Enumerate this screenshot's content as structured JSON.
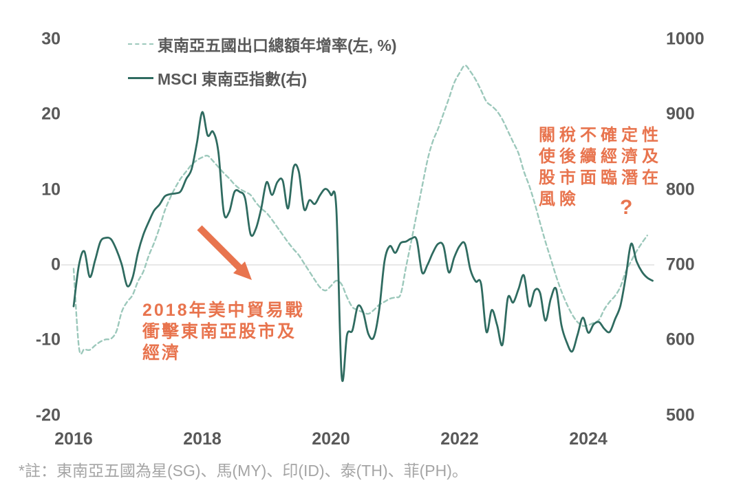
{
  "legend": {
    "items": [
      {
        "label": "東南亞五國出口總額年增率(左, %)",
        "swatch": "dashed-teal-line-icon"
      },
      {
        "label": "MSCI 東南亞指數(右)",
        "swatch": "solid-teal-line-icon"
      }
    ]
  },
  "annotations": {
    "trade_war": {
      "lines": [
        "2018年美中貿易戰",
        "衝擊東南亞股市及",
        "經濟"
      ]
    },
    "tariff_risk": {
      "lines": [
        "關稅不確定性",
        "使後續經濟及",
        "股市面臨潛在",
        "風險"
      ]
    },
    "question_mark": "?"
  },
  "footnote": "*註：東南亞五國為星(SG)、馬(MY)、印(ID)、泰(TH)、菲(PH)。",
  "colors": {
    "export_line": "#9CC8BB",
    "msci_line": "#2F6B60",
    "annotation_orange": "#E8744E",
    "axis_text": "#595959",
    "footnote_text": "#A5A5A5",
    "gridline": "#D9D9D9"
  },
  "chart_data": {
    "type": "line",
    "title": "",
    "x_axis": {
      "tick_labels": [
        "2016",
        "2018",
        "2020",
        "2022",
        "2024"
      ],
      "tick_years": [
        2016,
        2018,
        2020,
        2022,
        2024
      ],
      "range_years": [
        2016,
        2025.2
      ],
      "grid": false
    },
    "left_axis": {
      "ticks": [
        "30",
        "20",
        "10",
        "0",
        "-10",
        "-20"
      ],
      "tick_values": [
        30,
        20,
        10,
        0,
        -10,
        -20
      ],
      "range": [
        -20,
        30
      ],
      "unit": "%"
    },
    "right_axis": {
      "ticks": [
        "1000",
        "900",
        "800",
        "700",
        "600",
        "500"
      ],
      "tick_values": [
        1000,
        900,
        800,
        700,
        600,
        500
      ],
      "range": [
        500,
        1000
      ]
    },
    "gridline_left_value": 0,
    "legend_position": "top-left",
    "series": [
      {
        "name": "東南亞五國出口總額年增率(左, %)",
        "axis": "left",
        "line_style": "dashed",
        "color": "#9CC8BB",
        "start": "2016-01",
        "interval": "monthly",
        "values": [
          -0.5,
          -11.0,
          -11.2,
          -11.3,
          -10.7,
          -10.2,
          -9.9,
          -9.8,
          -8.8,
          -6.2,
          -4.9,
          -4.0,
          -2.2,
          -0.9,
          1.2,
          2.9,
          4.9,
          7.2,
          8.9,
          10.3,
          11.5,
          12.4,
          13.3,
          13.9,
          14.3,
          14.5,
          13.8,
          13.0,
          12.2,
          11.5,
          10.7,
          10.1,
          9.7,
          9.3,
          8.3,
          7.5,
          6.9,
          6.0,
          5.0,
          4.0,
          3.0,
          2.1,
          1.3,
          0.2,
          -0.9,
          -2.0,
          -3.0,
          -3.4,
          -2.8,
          -2.1,
          -2.6,
          -4.3,
          -5.6,
          -6.0,
          -6.3,
          -6.5,
          -6.0,
          -5.3,
          -4.9,
          -4.5,
          -4.3,
          -3.9,
          -0.3,
          3.2,
          6.8,
          10.4,
          13.9,
          16.4,
          18.1,
          20.1,
          22.1,
          24.2,
          25.5,
          26.5,
          25.7,
          24.6,
          23.2,
          21.7,
          21.1,
          20.4,
          19.3,
          17.8,
          16.3,
          14.8,
          12.4,
          10.5,
          8.2,
          5.6,
          3.1,
          0.8,
          -1.5,
          -3.5,
          -5.2,
          -6.6,
          -7.6,
          -8.1,
          -8.0,
          -7.7,
          -7.3,
          -5.9,
          -4.9,
          -4.1,
          -2.9,
          -0.9,
          0.5,
          1.8,
          2.9,
          3.9
        ]
      },
      {
        "name": "MSCI 東南亞指數(右)",
        "axis": "right",
        "line_style": "solid",
        "color": "#2F6B60",
        "start": "2016-01",
        "interval": "monthly",
        "values": [
          645,
          700,
          718,
          684,
          706,
          731,
          736,
          734,
          720,
          700,
          672,
          683,
          716,
          740,
          757,
          772,
          780,
          791,
          794,
          795,
          798,
          814,
          827,
          862,
          903,
          872,
          877,
          850,
          770,
          770,
          797,
          797,
          788,
          741,
          748,
          775,
          810,
          793,
          810,
          812,
          775,
          829,
          824,
          774,
          786,
          781,
          793,
          801,
          793,
          775,
          552,
          607,
          613,
          645,
          637,
          608,
          604,
          640,
          705,
          725,
          716,
          729,
          731,
          735,
          733,
          690,
          700,
          716,
          728,
          725,
          690,
          710,
          725,
          728,
          694,
          678,
          675,
          611,
          640,
          620,
          594,
          656,
          650,
          668,
          686,
          645,
          666,
          663,
          626,
          655,
          668,
          620,
          597,
          585,
          607,
          630,
          610,
          621,
          624,
          615,
          611,
          628,
          646,
          684,
          728,
          705,
          691,
          683,
          679
        ]
      }
    ]
  }
}
